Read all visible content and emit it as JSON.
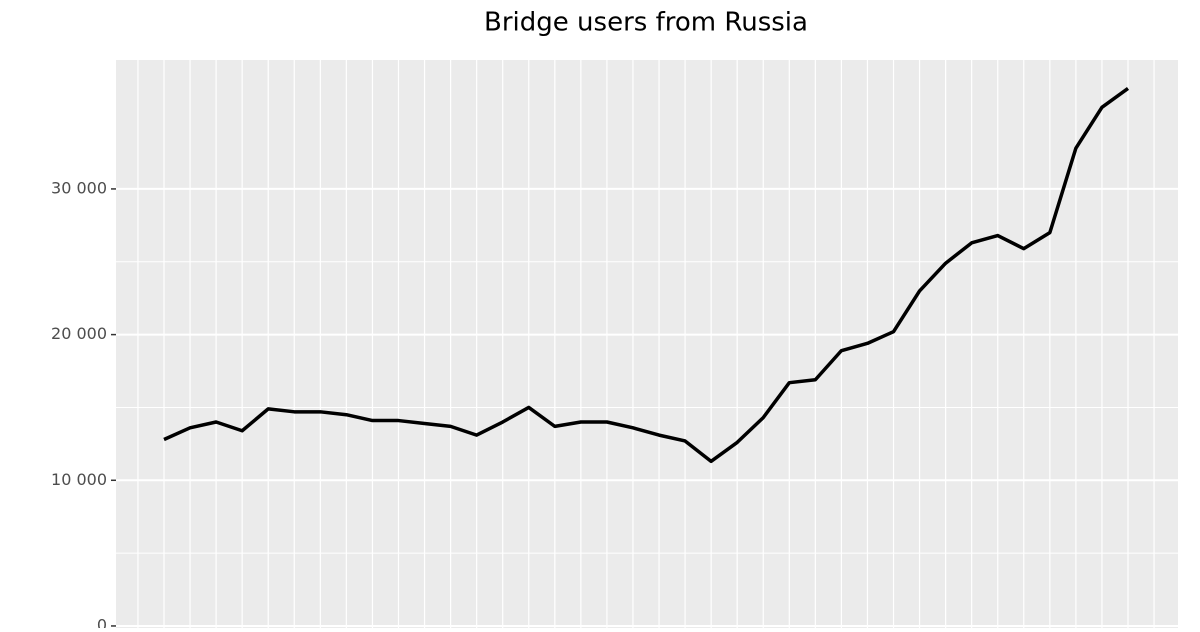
{
  "chart_data": {
    "type": "line",
    "title": "Bridge users from Russia",
    "categories": [
      null,
      null,
      null,
      null,
      null,
      null,
      null,
      null,
      null,
      null,
      null,
      null,
      null,
      null,
      null,
      null,
      null,
      null,
      null,
      null,
      null,
      null,
      null,
      null,
      null,
      null,
      null,
      null,
      null,
      null,
      null,
      null,
      null,
      null,
      null,
      null,
      null,
      null
    ],
    "series": [
      {
        "color": "#000000",
        "values": [
          12800,
          13600,
          14000,
          13400,
          14900,
          14700,
          14700,
          14500,
          14100,
          14100,
          13900,
          13700,
          13100,
          14000,
          15000,
          13700,
          14000,
          14000,
          13600,
          13100,
          12700,
          11300,
          12600,
          14300,
          16700,
          16900,
          18900,
          19400,
          20200,
          23000,
          24900,
          26300,
          26800,
          25900,
          27000,
          32800,
          35600,
          36900
        ]
      }
    ],
    "ylim": [
      -140,
      38850
    ],
    "yticks": [
      0,
      {
        "value": 10000,
        "label": "10 000"
      },
      {
        "value": 20000,
        "label": "20 000"
      },
      {
        "value": 30000,
        "label": "30 000"
      }
    ],
    "grid": true
  }
}
